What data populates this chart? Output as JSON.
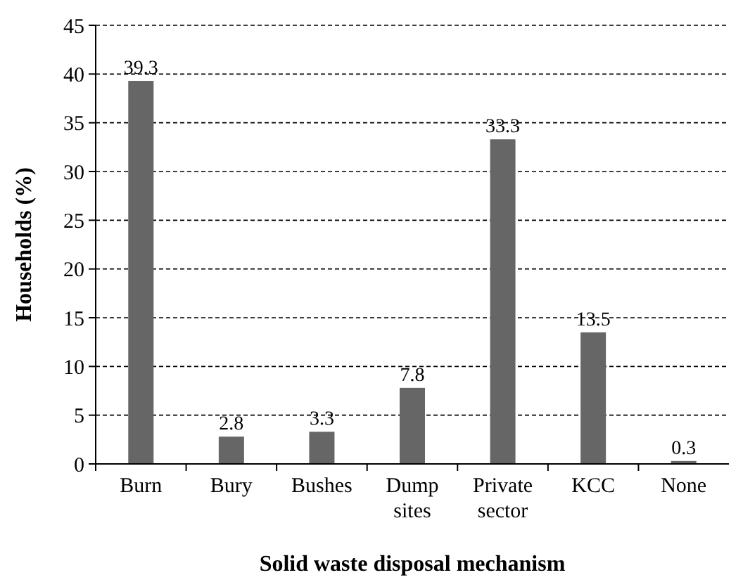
{
  "chart_data": {
    "type": "bar",
    "xlabel": "Solid waste disposal mechanism",
    "ylabel": "Households (%)",
    "categories": [
      "Burn",
      "Bury",
      "Bushes",
      "Dump sites",
      "Private sector",
      "KCC",
      "None"
    ],
    "values": [
      39.3,
      2.8,
      3.3,
      7.8,
      33.3,
      13.5,
      0.3
    ],
    "color": "#666666",
    "ylim": [
      0,
      45
    ],
    "yticks": [
      0,
      5,
      10,
      15,
      20,
      25,
      30,
      35,
      40,
      45
    ],
    "grid": "y",
    "data_labels": true
  }
}
